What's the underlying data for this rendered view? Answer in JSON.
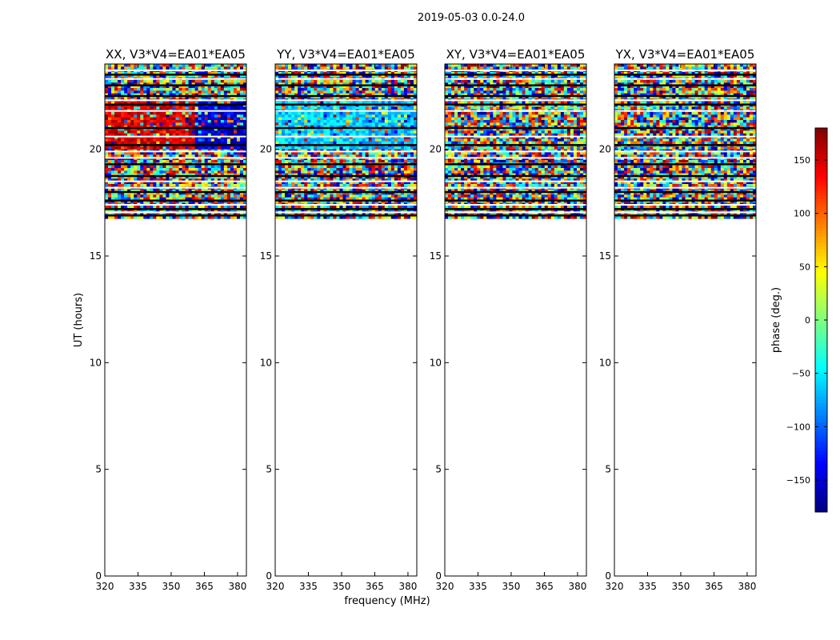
{
  "chart_data": {
    "type": "heatmap",
    "suptitle": "2019-05-03 0.0-24.0",
    "ylabel": "UT (hours)",
    "xlabel": "frequency (MHz)",
    "xlim": [
      320,
      384
    ],
    "ylim": [
      0,
      24
    ],
    "xticks": [
      320,
      335,
      350,
      365,
      380
    ],
    "yticks": [
      0,
      5,
      10,
      15,
      20
    ],
    "data_time_range_hours": [
      16.75,
      24.0
    ],
    "panels": [
      {
        "title": "XX, V3*V4=EA01*EA05",
        "dominant_phase_deg": {
          "upper_band_low_freq": 150,
          "upper_band_high_freq": -150,
          "low_band": "noise"
        }
      },
      {
        "title": "YY, V3*V4=EA01*EA05",
        "dominant_phase_deg": {
          "upper_band_low_freq": -60,
          "upper_band_high_freq": -70,
          "low_band": "noise"
        }
      },
      {
        "title": "XY, V3*V4=EA01*EA05",
        "dominant_phase_deg": {
          "upper_band_low_freq": "noise",
          "upper_band_high_freq": "noise",
          "low_band": "noise"
        }
      },
      {
        "title": "YX, V3*V4=EA01*EA05",
        "dominant_phase_deg": {
          "upper_band_low_freq": "noise",
          "upper_band_high_freq": "noise",
          "low_band": "noise"
        }
      }
    ],
    "colorbar": {
      "label": "phase (deg.)",
      "range": [
        -180,
        180
      ],
      "ticks": [
        -150,
        -100,
        -50,
        0,
        50,
        100,
        150
      ],
      "tick_labels": [
        "−150",
        "−100",
        "−50",
        "0",
        "50",
        "100",
        "150"
      ],
      "colormap": "jet"
    }
  }
}
